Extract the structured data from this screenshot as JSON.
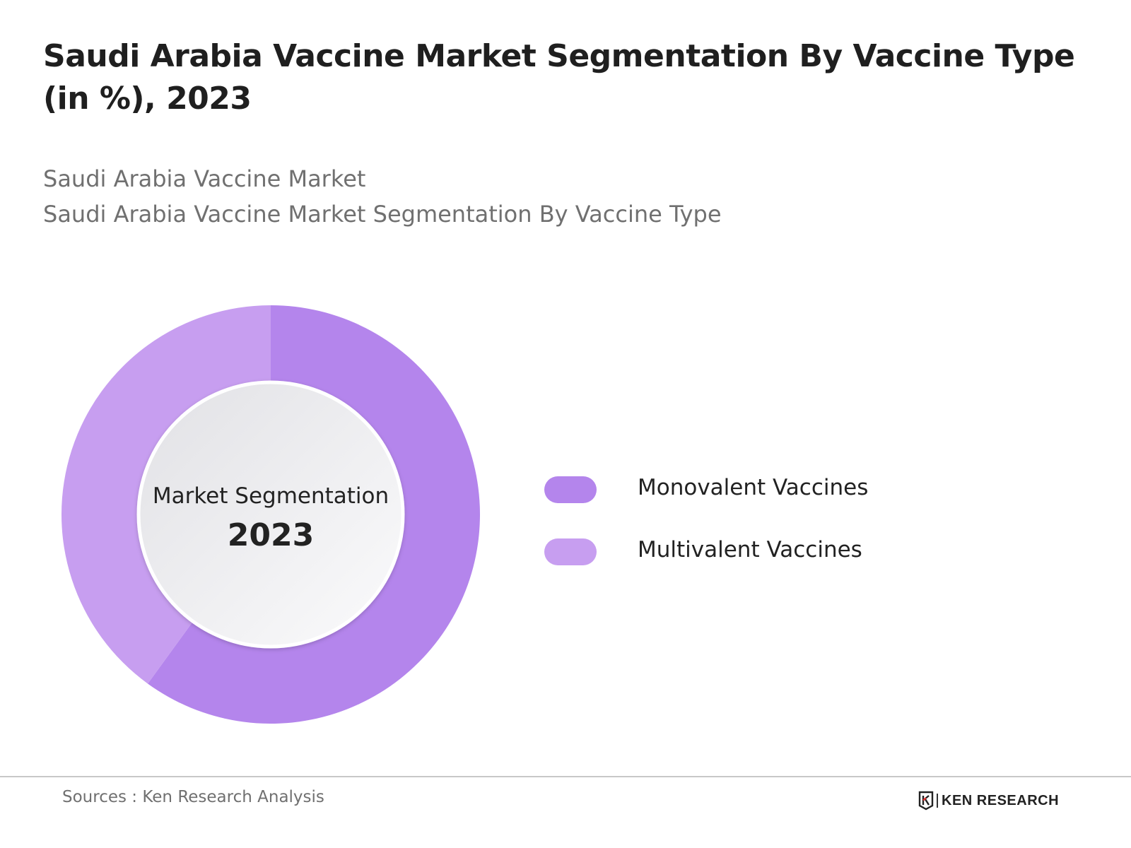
{
  "header": {
    "title": "Saudi Arabia Vaccine Market Segmentation By Vaccine Type (in %), 2023",
    "subtitle_line1": "Saudi Arabia Vaccine Market",
    "subtitle_line2": "Saudi Arabia Vaccine Market Segmentation By Vaccine Type"
  },
  "chart_data": {
    "type": "pie",
    "style": "donut",
    "center_label": "Market Segmentation",
    "center_value": "2023",
    "categories": [
      "Monovalent Vaccines",
      "Multivalent Vaccines"
    ],
    "values": [
      60,
      40
    ],
    "colors": [
      "#b485ec",
      "#c79ef0"
    ],
    "legend_position": "right"
  },
  "footer": {
    "source": "Sources : Ken Research Analysis",
    "brand": "KEN RESEARCH",
    "brand_color": "#e8312f"
  }
}
